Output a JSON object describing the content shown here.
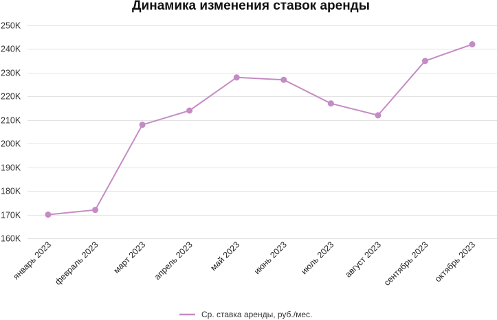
{
  "chart_data": {
    "type": "line",
    "title": "Динамика изменения ставок аренды",
    "categories": [
      "январь 2023",
      "февраль 2023",
      "март 2023",
      "апрель 2023",
      "май 2023",
      "июнь 2023",
      "июль 2023",
      "август 2023",
      "сентябрь 2023",
      "октябрь 2023"
    ],
    "series": [
      {
        "name": "Ср. ставка аренды, руб./мес.",
        "values": [
          170000,
          172000,
          208000,
          214000,
          228000,
          227000,
          217000,
          212000,
          235000,
          242000
        ]
      }
    ],
    "y_ticks": [
      {
        "value": 160000,
        "label": "160K"
      },
      {
        "value": 170000,
        "label": "170K"
      },
      {
        "value": 180000,
        "label": "180K"
      },
      {
        "value": 190000,
        "label": "190K"
      },
      {
        "value": 200000,
        "label": "200K"
      },
      {
        "value": 210000,
        "label": "210K"
      },
      {
        "value": 220000,
        "label": "220K"
      },
      {
        "value": 230000,
        "label": "230K"
      },
      {
        "value": 240000,
        "label": "240K"
      },
      {
        "value": 250000,
        "label": "250K"
      }
    ],
    "ylim": [
      160000,
      250000
    ],
    "grid": true,
    "legend_position": "bottom-center",
    "colors": {
      "series": "#c48bc4",
      "grid": "#e3e3e3"
    }
  }
}
